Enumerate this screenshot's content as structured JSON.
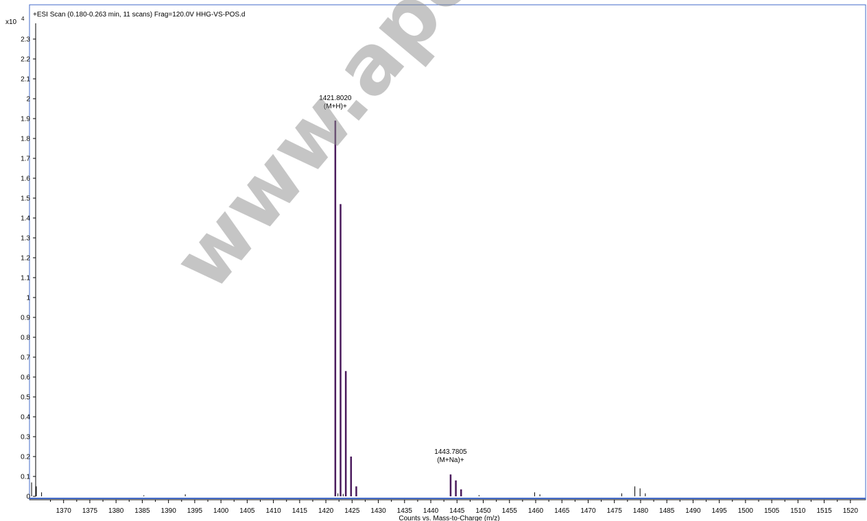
{
  "chart_data": {
    "type": "bar",
    "title": "+ESI Scan (0.180-0.263 min, 11 scans) Frag=120.0V HHG-VS-POS.d",
    "xlabel": "Counts vs. Mass-to-Charge (m/z)",
    "ylabel": "",
    "y_multiplier": "x10",
    "y_exponent": "4",
    "xlim": [
      1363.5,
      1522.9
    ],
    "ylim": [
      0,
      2.35
    ],
    "x_ticks": [
      1370,
      1375,
      1380,
      1385,
      1390,
      1395,
      1400,
      1405,
      1410,
      1415,
      1420,
      1425,
      1430,
      1435,
      1440,
      1445,
      1450,
      1455,
      1460,
      1465,
      1470,
      1475,
      1480,
      1485,
      1490,
      1495,
      1500,
      1505,
      1510,
      1515,
      1520
    ],
    "y_ticks": [
      0,
      0.1,
      0.2,
      0.3,
      0.4,
      0.5,
      0.6,
      0.7,
      0.8,
      0.9,
      1,
      1.1,
      1.2,
      1.3,
      1.4,
      1.5,
      1.6,
      1.7,
      1.8,
      1.9,
      2,
      2.1,
      2.2,
      2.3
    ],
    "series": [
      {
        "color": "#4a1a5c",
        "peaks": [
          {
            "x": 1421.802,
            "y": 1.89
          },
          {
            "x": 1422.8,
            "y": 1.47
          },
          {
            "x": 1423.8,
            "y": 0.63
          },
          {
            "x": 1424.8,
            "y": 0.2
          },
          {
            "x": 1425.8,
            "y": 0.05
          },
          {
            "x": 1443.7805,
            "y": 0.11
          },
          {
            "x": 1444.78,
            "y": 0.08
          },
          {
            "x": 1445.78,
            "y": 0.035
          }
        ]
      },
      {
        "color": "#000000",
        "peaks": [
          {
            "x": 1363.9,
            "y": 0.07
          },
          {
            "x": 1364.8,
            "y": 0.05
          },
          {
            "x": 1365.8,
            "y": 0.02
          },
          {
            "x": 1385.3,
            "y": 0.005
          },
          {
            "x": 1393.2,
            "y": 0.01
          },
          {
            "x": 1422.3,
            "y": 0.015
          },
          {
            "x": 1423.3,
            "y": 0.012
          },
          {
            "x": 1449.2,
            "y": 0.006
          },
          {
            "x": 1459.8,
            "y": 0.02
          },
          {
            "x": 1460.8,
            "y": 0.01
          },
          {
            "x": 1476.4,
            "y": 0.015
          },
          {
            "x": 1478.9,
            "y": 0.05
          },
          {
            "x": 1479.9,
            "y": 0.04
          },
          {
            "x": 1480.9,
            "y": 0.015
          }
        ]
      }
    ],
    "annotations": [
      {
        "x": 1421.802,
        "y": 1.89,
        "lines": [
          "1421.8020",
          "(M+H)+"
        ]
      },
      {
        "x": 1443.7805,
        "y": 0.11,
        "lines": [
          "1443.7805",
          "(M+Na)+"
        ]
      }
    ]
  },
  "watermark": "www.apexb",
  "colors": {
    "frame": "#4169c8",
    "peak": "#4a1a5c",
    "noise": "#000000"
  }
}
